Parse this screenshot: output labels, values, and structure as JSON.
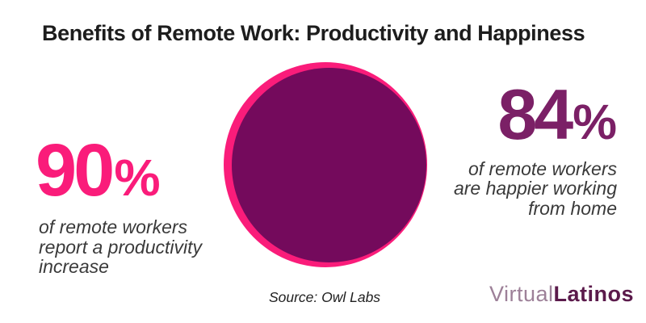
{
  "title": "Benefits of Remote Work: Productivity and Happiness",
  "stats": {
    "left": {
      "value": "90",
      "percent_sign": "%",
      "caption_lines": [
        "of remote workers",
        "report a productivity",
        "increase"
      ]
    },
    "right": {
      "value": "84",
      "percent_sign": "%",
      "caption_lines": [
        "of remote workers",
        "are happier working",
        "from home"
      ]
    }
  },
  "source": "Source: Owl Labs",
  "logo": {
    "part1": "Virtual",
    "part2": "Latinos"
  },
  "colors": {
    "accent_pink": "#fa1c7a",
    "circle_purple": "#740a5c",
    "stat_purple": "#7b2066",
    "title_text": "#1d1d1d",
    "caption_text": "#3a3a3a",
    "logo_virtual": "#9d8098",
    "logo_latinos": "#5b1a4b",
    "background": "#ffffff"
  },
  "chart_data": {
    "type": "table",
    "title": "Benefits of Remote Work: Productivity and Happiness",
    "categories": [
      "remote workers who report a productivity increase",
      "remote workers who are happier working from home"
    ],
    "values": [
      90,
      84
    ],
    "unit": "%",
    "source": "Source: Owl Labs",
    "legend_position": "none",
    "grid": false
  }
}
